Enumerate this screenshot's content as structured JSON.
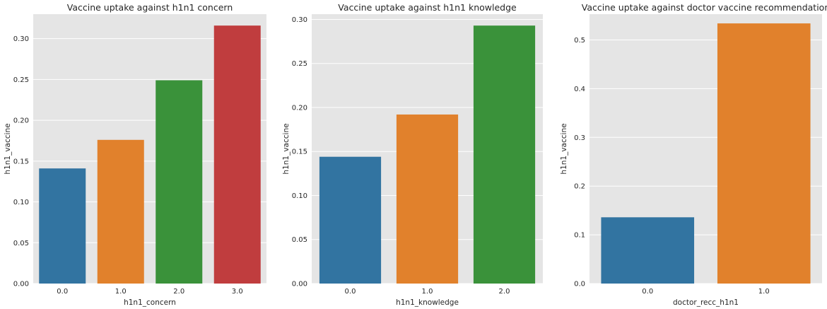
{
  "chart_data": [
    {
      "type": "bar",
      "title": "Vaccine uptake against h1n1 concern",
      "xlabel": "h1n1_concern",
      "ylabel": "h1n1_vaccine",
      "categories": [
        "0.0",
        "1.0",
        "2.0",
        "3.0"
      ],
      "values": [
        0.141,
        0.176,
        0.249,
        0.316
      ],
      "colors": [
        "#3274a1",
        "#e1812c",
        "#3a923a",
        "#c03d3e"
      ],
      "ylim": [
        0,
        0.33
      ],
      "yticks": [
        0.0,
        0.05,
        0.1,
        0.15,
        0.2,
        0.25,
        0.3
      ],
      "ytick_labels": [
        "0.00",
        "0.05",
        "0.10",
        "0.15",
        "0.20",
        "0.25",
        "0.30"
      ],
      "grid": true
    },
    {
      "type": "bar",
      "title": "Vaccine uptake against h1n1 knowledge",
      "xlabel": "h1n1_knowledge",
      "ylabel": "h1n1_vaccine",
      "categories": [
        "0.0",
        "1.0",
        "2.0"
      ],
      "values": [
        0.144,
        0.192,
        0.293
      ],
      "colors": [
        "#3274a1",
        "#e1812c",
        "#3a923a"
      ],
      "ylim": [
        0,
        0.306
      ],
      "yticks": [
        0.0,
        0.05,
        0.1,
        0.15,
        0.2,
        0.25,
        0.3
      ],
      "ytick_labels": [
        "0.00",
        "0.05",
        "0.10",
        "0.15",
        "0.20",
        "0.25",
        "0.30"
      ],
      "grid": true
    },
    {
      "type": "bar",
      "title": "Vaccine uptake against doctor vaccine recommendation",
      "xlabel": "doctor_recc_h1n1",
      "ylabel": "h1n1_vaccine",
      "categories": [
        "0.0",
        "1.0"
      ],
      "values": [
        0.136,
        0.534
      ],
      "colors": [
        "#3274a1",
        "#e1812c"
      ],
      "ylim": [
        0,
        0.553
      ],
      "yticks": [
        0.0,
        0.1,
        0.2,
        0.3,
        0.4,
        0.5
      ],
      "ytick_labels": [
        "0.0",
        "0.1",
        "0.2",
        "0.3",
        "0.4",
        "0.5"
      ],
      "grid": true
    }
  ]
}
